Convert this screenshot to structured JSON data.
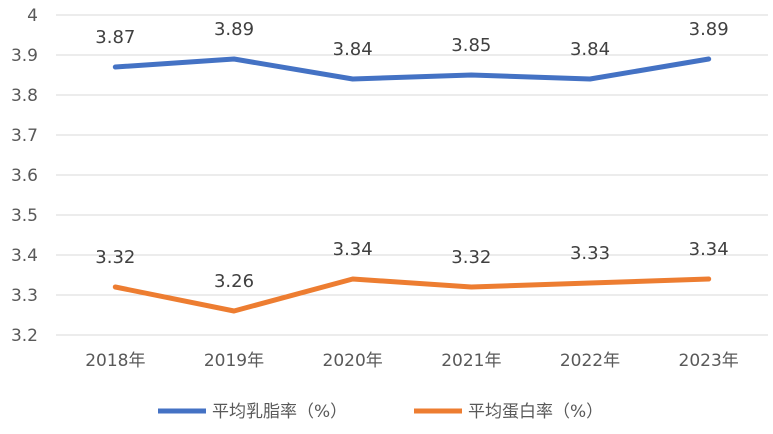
{
  "chart_data": {
    "type": "line",
    "title": "",
    "xlabel": "",
    "ylabel": "",
    "categories": [
      "2018年",
      "2019年",
      "2020年",
      "2021年",
      "2022年",
      "2023年"
    ],
    "ylim": [
      3.2,
      4.0
    ],
    "yticks": [
      "3.2",
      "3.3",
      "3.4",
      "3.5",
      "3.6",
      "3.7",
      "3.8",
      "3.9",
      "4"
    ],
    "grid": true,
    "legend_position": "bottom",
    "series": [
      {
        "name": "平均乳脂率（%）",
        "color": "#4472c4",
        "values": [
          3.87,
          3.89,
          3.84,
          3.85,
          3.84,
          3.89
        ],
        "labels": [
          "3.87",
          "3.89",
          "3.84",
          "3.85",
          "3.84",
          "3.89"
        ]
      },
      {
        "name": "平均蛋白率（%）",
        "color": "#ed7d31",
        "values": [
          3.32,
          3.26,
          3.34,
          3.32,
          3.33,
          3.34
        ],
        "labels": [
          "3.32",
          "3.26",
          "3.34",
          "3.32",
          "3.33",
          "3.34"
        ]
      }
    ]
  }
}
